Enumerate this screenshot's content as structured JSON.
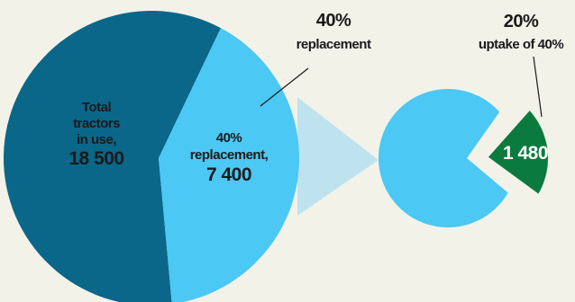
{
  "colors": {
    "background": "#f3f2e9",
    "total": "#0a6789",
    "replacement": "#4bc8f4",
    "uptake": "#0b7a3e",
    "funnel": "#bfe3ee",
    "label_dark": "#1a1a1a",
    "label_light": "#ffffff"
  },
  "chart_data": {
    "type": "pie",
    "pies": [
      {
        "slices": [
          {
            "label_lines": [
              "Total",
              "tractors",
              "in use,"
            ],
            "value_label": "18 500",
            "value": 18500,
            "color": "#0a6789"
          },
          {
            "label_lines": [
              "40%",
              "replacement,"
            ],
            "value_label": "7 400",
            "value": 7400,
            "color": "#4bc8f4"
          }
        ],
        "callout": {
          "pct": "40%",
          "text": "replacement"
        }
      },
      {
        "slices": [
          {
            "value": 5920,
            "color": "#4bc8f4"
          },
          {
            "value_label": "1 480",
            "value": 1480,
            "color": "#0b7a3e",
            "exploded": true
          }
        ],
        "callout": {
          "pct": "20%",
          "text": "uptake of 40%"
        }
      }
    ]
  }
}
